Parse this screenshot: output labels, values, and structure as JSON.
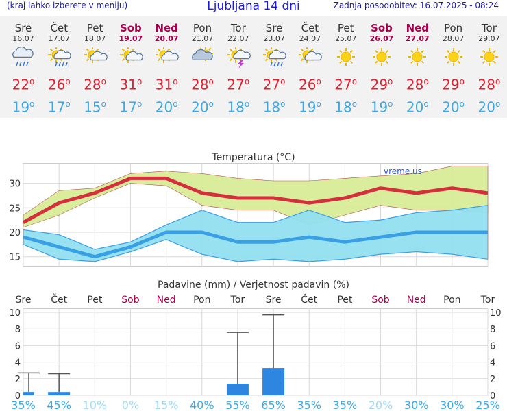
{
  "header": {
    "menu_hint": "(kraj lahko izberete v meniju)",
    "title": "Ljubljana 14 dni",
    "updated": "Zadnja posodobitev: 16.07.2025 - 08:24"
  },
  "days": [
    {
      "name": "Sre",
      "date": "16.07",
      "weekend": false,
      "icon": "rain-cloud-icon",
      "max": "22",
      "min": "19"
    },
    {
      "name": "Čet",
      "date": "17.07",
      "weekend": false,
      "icon": "sun-rain-cloud-icon",
      "max": "26",
      "min": "17"
    },
    {
      "name": "Pet",
      "date": "18.07",
      "weekend": false,
      "icon": "sun-cloud-icon",
      "max": "28",
      "min": "15"
    },
    {
      "name": "Sob",
      "date": "19.07",
      "weekend": true,
      "icon": "sun-cloud-icon",
      "max": "31",
      "min": "17"
    },
    {
      "name": "Ned",
      "date": "20.07",
      "weekend": true,
      "icon": "sun-cloud-icon",
      "max": "31",
      "min": "20"
    },
    {
      "name": "Pon",
      "date": "21.07",
      "weekend": false,
      "icon": "cloud-sun-icon",
      "max": "28",
      "min": "20"
    },
    {
      "name": "Tor",
      "date": "22.07",
      "weekend": false,
      "icon": "sun-thunder-icon",
      "max": "27",
      "min": "18"
    },
    {
      "name": "Sre",
      "date": "23.07",
      "weekend": false,
      "icon": "sun-rain-cloud-icon",
      "max": "27",
      "min": "18"
    },
    {
      "name": "Čet",
      "date": "24.07",
      "weekend": false,
      "icon": "sun-cloud-icon",
      "max": "26",
      "min": "19"
    },
    {
      "name": "Pet",
      "date": "25.07",
      "weekend": false,
      "icon": "sun-icon",
      "max": "27",
      "min": "18"
    },
    {
      "name": "Sob",
      "date": "26.07",
      "weekend": true,
      "icon": "sun-icon",
      "max": "29",
      "min": "19"
    },
    {
      "name": "Ned",
      "date": "27.07",
      "weekend": true,
      "icon": "sun-icon",
      "max": "28",
      "min": "20"
    },
    {
      "name": "Pon",
      "date": "28.07",
      "weekend": false,
      "icon": "sun-icon",
      "max": "29",
      "min": "20"
    },
    {
      "name": "Tor",
      "date": "29.07",
      "weekend": false,
      "icon": "sun-icon",
      "max": "28",
      "min": "20"
    }
  ],
  "colors": {
    "max_line": "#d32f3c",
    "min_line": "#3aa0e6",
    "max_band": "#d8ec98",
    "min_band": "#92dff0",
    "overlap_band": "#86d28c",
    "bar": "#2e86e0",
    "weekend": "#a8004f",
    "pct_low": "#39a8e8",
    "pct_faded": "#9fd8f2"
  },
  "chart_data": [
    {
      "type": "line",
      "title": "Temperatura (°C)",
      "watermark": "vreme.us",
      "categories": [
        "16.07",
        "17.07",
        "18.07",
        "19.07",
        "20.07",
        "21.07",
        "22.07",
        "23.07",
        "24.07",
        "25.07",
        "26.07",
        "27.07",
        "28.07",
        "29.07"
      ],
      "ylim": [
        13,
        34
      ],
      "yticks": [
        15,
        20,
        25,
        30
      ],
      "series": [
        {
          "name": "max",
          "values": [
            22,
            26,
            28,
            31,
            31,
            28,
            27,
            27,
            26,
            27,
            29,
            28,
            29,
            28
          ],
          "band_low": [
            21,
            23.5,
            27,
            30,
            29.5,
            25.5,
            24.5,
            24.5,
            21.5,
            23.5,
            25.5,
            24.5,
            24.5,
            24
          ],
          "band_high": [
            23.5,
            28.5,
            29,
            32,
            32.5,
            32,
            31,
            30.5,
            30.5,
            31,
            31.5,
            32,
            33.5,
            33.5
          ]
        },
        {
          "name": "min",
          "values": [
            19,
            17,
            15,
            17,
            20,
            20,
            18,
            18,
            19,
            18,
            19,
            20,
            20,
            20
          ],
          "band_low": [
            17.5,
            14.5,
            14,
            16,
            18.5,
            15.5,
            14,
            14.5,
            14,
            14.5,
            15.5,
            16,
            15.5,
            14.5
          ],
          "band_high": [
            20.5,
            19.5,
            16.5,
            18,
            21.5,
            24.5,
            22,
            22,
            24.5,
            22,
            22.5,
            24,
            24.5,
            25.5
          ]
        }
      ],
      "grid": true
    },
    {
      "type": "bar",
      "title": "Padavine (mm) / Verjetnost padavin (%)",
      "categories": [
        "Sre",
        "Čet",
        "Pet",
        "Sob",
        "Ned",
        "Pon",
        "Tor",
        "Sre",
        "Čet",
        "Pet",
        "Sob",
        "Ned",
        "Pon",
        "Tor"
      ],
      "values": [
        0.4,
        0.4,
        0,
        0,
        0,
        0,
        1.4,
        3.3,
        0,
        0,
        0,
        0,
        0,
        0
      ],
      "error_high": [
        2.7,
        2.6,
        0,
        0,
        0,
        0,
        7.6,
        9.7,
        0,
        0,
        0,
        0,
        0,
        0
      ],
      "probability": [
        "35%",
        "45%",
        "10%",
        "0%",
        "15%",
        "40%",
        "55%",
        "65%",
        "35%",
        "35%",
        "20%",
        "30%",
        "30%",
        "25%"
      ],
      "ylim": [
        0,
        10.5
      ],
      "yticks": [
        0,
        2,
        4,
        6,
        8,
        10
      ],
      "grid": true
    }
  ]
}
